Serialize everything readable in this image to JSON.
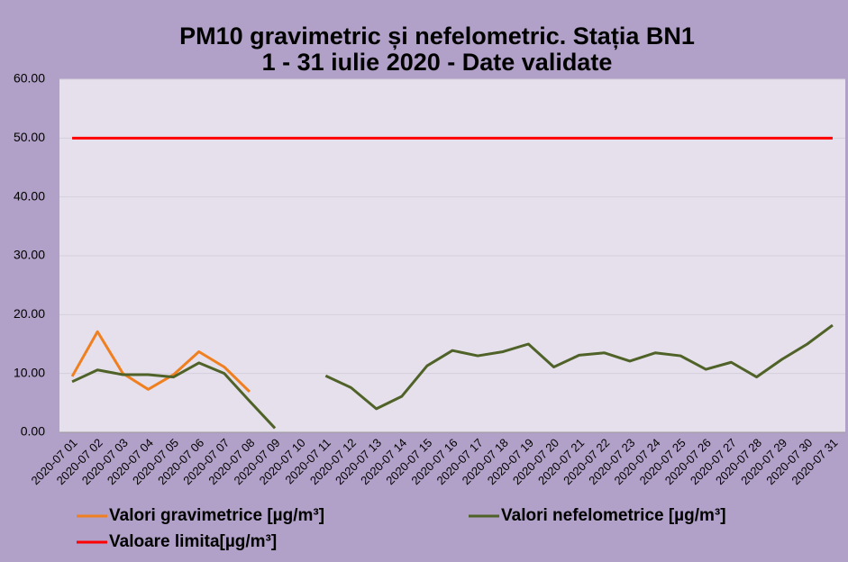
{
  "chart_data": {
    "type": "line",
    "title": [
      "PM10 gravimetric și nefelometric. Stația BN1",
      "1 - 31 iulie 2020 - Date validate"
    ],
    "categories": [
      "2020-07 01",
      "2020-07 02",
      "2020-07 03",
      "2020-07 04",
      "2020-07 05",
      "2020-07 06",
      "2020-07 07",
      "2020-07 08",
      "2020-07 09",
      "2020-07 10",
      "2020-07 11",
      "2020-07 12",
      "2020-07 13",
      "2020-07 14",
      "2020-07 15",
      "2020-07 16",
      "2020-07 17",
      "2020-07 18",
      "2020-07 19",
      "2020-07 20",
      "2020-07 21",
      "2020-07 22",
      "2020-07 23",
      "2020-07 24",
      "2020-07 25",
      "2020-07 26",
      "2020-07 27",
      "2020-07 28",
      "2020-07 29",
      "2020-07 30",
      "2020-07 31"
    ],
    "series": [
      {
        "name": "Valori gravimetrice [µg/m³]",
        "color": "#f07f1f",
        "values": [
          9.5,
          17.1,
          10.0,
          7.3,
          9.8,
          13.7,
          11.1,
          6.9,
          null,
          null,
          null,
          null,
          null,
          null,
          null,
          null,
          null,
          null,
          null,
          null,
          null,
          null,
          null,
          null,
          null,
          null,
          null,
          null,
          null,
          null,
          null
        ]
      },
      {
        "name": "Valori nefelometrice [µg/m³]",
        "color": "#4f6228",
        "values": [
          8.6,
          10.6,
          9.8,
          9.8,
          9.4,
          11.8,
          10.0,
          5.3,
          0.7,
          null,
          9.6,
          7.6,
          4.0,
          6.1,
          11.3,
          13.9,
          13.0,
          13.7,
          15.0,
          11.1,
          13.1,
          13.5,
          12.1,
          13.5,
          13.0,
          10.7,
          11.9,
          9.4,
          12.4,
          15.0,
          18.2
        ]
      },
      {
        "name": "Valoare limita[µg/m³]",
        "color": "#ff0000",
        "values": [
          50,
          50,
          50,
          50,
          50,
          50,
          50,
          50,
          50,
          50,
          50,
          50,
          50,
          50,
          50,
          50,
          50,
          50,
          50,
          50,
          50,
          50,
          50,
          50,
          50,
          50,
          50,
          50,
          50,
          50,
          50
        ]
      }
    ],
    "ylim": [
      0,
      60
    ],
    "yticks": [
      {
        "value": 0,
        "label": "0.00"
      },
      {
        "value": 10,
        "label": "10.00"
      },
      {
        "value": 20,
        "label": "20.00"
      },
      {
        "value": 30,
        "label": "30.00"
      },
      {
        "value": 40,
        "label": "40.00"
      },
      {
        "value": 50,
        "label": "50.00"
      },
      {
        "value": 60,
        "label": "60.00"
      }
    ],
    "grid": true
  }
}
